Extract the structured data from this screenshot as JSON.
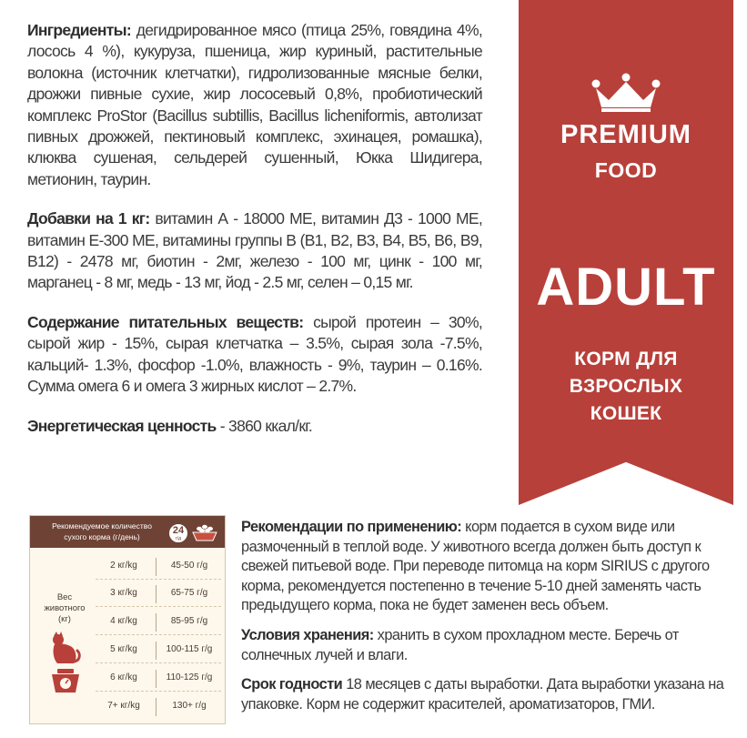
{
  "ingredients": {
    "label": "Ингредиенты:",
    "text": " дегидрированное мясо (птица 25%, говядина 4%, лосось 4 %), кукуруза, пшеница, жир куриный, растительные волокна (источник клетчатки), гидролизованные мясные белки, дрожжи пивные сухие, жир лососевый 0,8%, пробиотический комплекс ProStor (Bacillus subtillis, Bacillus licheniformis, автолизат пивных дрожжей, пектиновый комплекс, эхинацея, ромашка), клюква сушеная, сельдерей сушенный, Юкка Шидигера, метионин, таурин."
  },
  "additives": {
    "label": "Добавки на 1 кг:",
    "text": " витамин А - 18000 МЕ, витамин Д3 - 1000 МЕ, витамин Е-300 МЕ, витамины группы В (В1, В2, В3, В4, В5, В6, В9, В12) - 2478 мг, биотин - 2мг, железо - 100 мг, цинк - 100 мг, марганец - 8 мг, медь - 13 мг, йод - 2.5 мг, селен – 0,15 мг."
  },
  "nutrients": {
    "label": "Содержание питательных веществ:",
    "text": " сырой протеин – 30%, сырой жир - 15%, сырая клетчатка – 3.5%, сырая зола -7.5%, кальций- 1.3%, фосфор -1.0%, влажность - 9%, таурин – 0.16%. Сумма омега 6  и омега 3 жирных кислот – 2.7%."
  },
  "energy": {
    "label": "Энергетическая ценность",
    "text": " - 3860 ккал/кг."
  },
  "banner": {
    "premium": "PREMIUM",
    "food": "FOOD",
    "adult": "ADULT",
    "sub": [
      "КОРМ ДЛЯ",
      "ВЗРОСЛЫХ",
      "КОШЕК"
    ],
    "color": "#b8403a"
  },
  "feeding": {
    "title_line1": "Рекомендуемое количество",
    "title_line2": "сухого корма (г/день)",
    "badge_num": "24",
    "badge_unit": "г/д",
    "weight_label": [
      "Вес",
      "животного",
      "(кг)"
    ],
    "rows": [
      {
        "weight": "2 кг/kg",
        "grams": "45-50 г/g"
      },
      {
        "weight": "3 кг/kg",
        "grams": "65-75 г/g"
      },
      {
        "weight": "4 кг/kg",
        "grams": "85-95 г/g"
      },
      {
        "weight": "5 кг/kg",
        "grams": "100-115 г/g"
      },
      {
        "weight": "6 кг/kg",
        "grams": "110-125 г/g"
      },
      {
        "weight": "7+ кг/kg",
        "grams": "130+ г/g"
      }
    ],
    "header_color": "#6e4234"
  },
  "usage": {
    "label": "Рекомендации по применению:",
    "text": " корм подается в сухом виде или размоченный в теплой воде.  У животного всегда должен быть доступ к свежей питьевой воде. При переводе питомца на корм SIRIUS с другого корма, рекомендуется постепенно в течение 5-10 дней заменять часть предыдущего корма, пока не будет заменен весь объем."
  },
  "storage": {
    "label": "Условия хранения:",
    "text": " хранить в сухом прохладном месте. Беречь от солнечных лучей и влаги."
  },
  "shelf": {
    "label": "Срок годности",
    "text": " 18 месяцев с даты выработки. Дата выработки указана на упаковке. Корм не содержит  красителей, ароматизаторов, ГМИ."
  },
  "icons": [
    "crown-icon",
    "bowl-icon",
    "cat-icon",
    "scale-icon"
  ]
}
